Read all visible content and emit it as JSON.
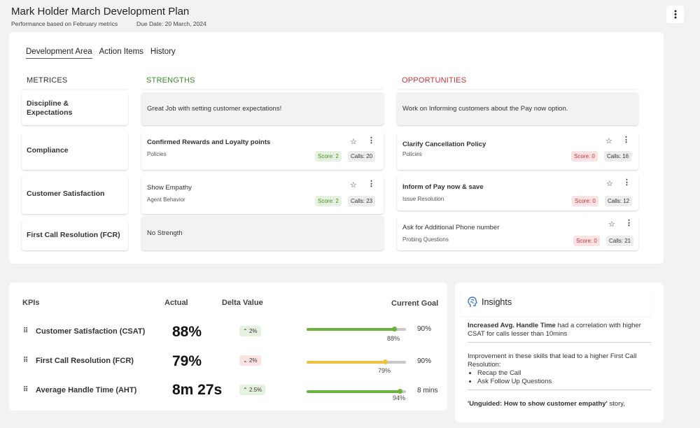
{
  "header": {
    "title": "Mark Holder March Development Plan",
    "performance_note": "Performance based on February metrics",
    "due_date": "Due Date: 20 March, 2024",
    "menu_icon": "kebab-icon"
  },
  "tabs": [
    {
      "label": "Development Area",
      "active": true
    },
    {
      "label": "Action Items",
      "active": false
    },
    {
      "label": "History",
      "active": false
    }
  ],
  "columns": {
    "metrics": "METRICES",
    "strengths": "STRENGTHS",
    "opportunities": "OPPORTUNITIES"
  },
  "colors": {
    "strengths": "#3a8a2a",
    "opportunities": "#c2333e",
    "bar_green": "#6bb33b",
    "bar_yellow": "#f0c040"
  },
  "metrics": [
    {
      "label": "Discipline & Expectations"
    },
    {
      "label": "Compliance"
    },
    {
      "label": "Customer Satisfaction"
    },
    {
      "label": "First Call Resolution (FCR)"
    }
  ],
  "strengths": {
    "summary": "Great Job with setting customer expectations!",
    "items": [
      {
        "title": "Confirmed Rewards and Loyalty points",
        "category": "Policies",
        "score": "Score: 2",
        "calls": "Calls: 20"
      },
      {
        "title": "Show Empathy",
        "category": "Agent Behavior",
        "score": "Score: 2",
        "calls": "Calls: 23"
      }
    ],
    "empty": "No Strength"
  },
  "opportunities": {
    "summary": "Work on Informing customers about the Pay now option.",
    "items": [
      {
        "title": "Clarify Cancellation Policy",
        "category": "Policies",
        "score": "Score: 0",
        "calls": "Calls: 16"
      },
      {
        "title": "Inform of Pay now & save",
        "category": "Issue Resolution",
        "score": "Score: 0",
        "calls": "Calls: 12"
      },
      {
        "title": "Ask for Additional Phone number",
        "category": "Probing Questions",
        "score": "Score: 0",
        "calls": "Calls: 21"
      }
    ]
  },
  "kpis": {
    "headers": {
      "kpis": "KPIs",
      "actual": "Actual",
      "delta": "Delta Value",
      "goal": "Current Goal"
    },
    "rows": [
      {
        "name": "Customer Satisfaction (CSAT)",
        "actual": "88%",
        "delta": "2%",
        "direction": "up",
        "progress": 0.88,
        "progress_label": "88%",
        "goal": "90%",
        "bar_color": "#6bb33b"
      },
      {
        "name": "First Call Resolution (FCR)",
        "actual": "79%",
        "delta": "2%",
        "direction": "down",
        "progress": 0.79,
        "progress_label": "79%",
        "goal": "90%",
        "bar_color": "#f0c040"
      },
      {
        "name": "Average Handle Time (AHT)",
        "actual": "8m 27s",
        "delta": "2.5%",
        "direction": "up",
        "progress": 0.94,
        "progress_label": "94%",
        "goal": "8 mins",
        "bar_color": "#6bb33b"
      }
    ]
  },
  "insights": {
    "title": "Insights",
    "item1_bold": "Increased Avg. Handle Time",
    "item1_rest": " had a correlation with higher CSAT for calls lesser than 10mins",
    "item2_text": "Improvement in these skills that lead to a higher First Call Resolution:",
    "item2_bullets": [
      "Recap the Call",
      "Ask Follow Up Questions"
    ],
    "item3_bold": "'Unguided: How to show customer empathy'",
    "item3_rest": " story,"
  }
}
